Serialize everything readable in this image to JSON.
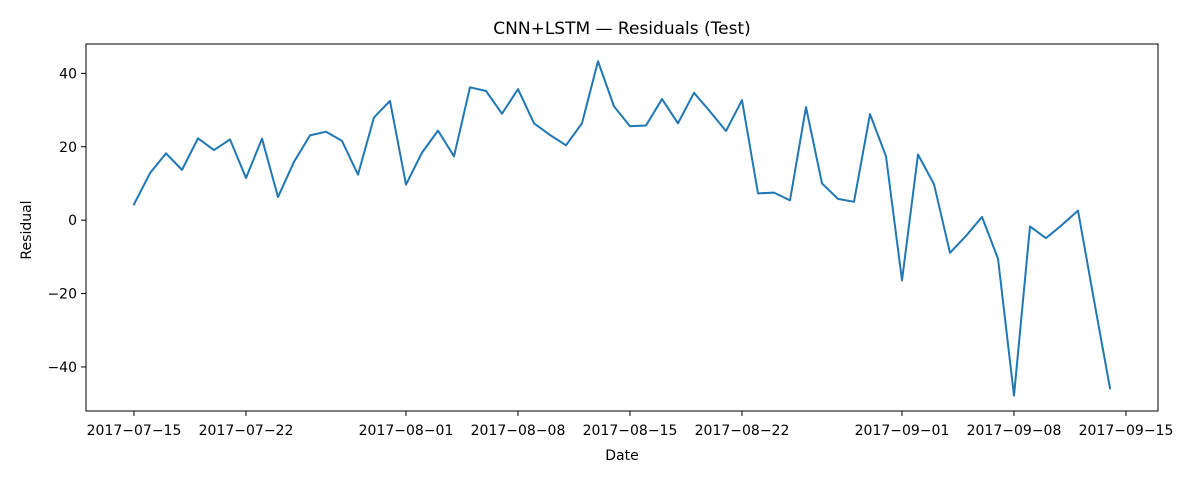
{
  "chart_data": {
    "type": "line",
    "title": "CNN+LSTM — Residuals (Test)",
    "xlabel": "Date",
    "ylabel": "Residual",
    "x_ticks": [
      "2017-07-15",
      "2017-07-22",
      "2017-08-01",
      "2017-08-08",
      "2017-08-15",
      "2017-08-22",
      "2017-09-01",
      "2017-09-08",
      "2017-09-15"
    ],
    "y_ticks": [
      -40,
      -20,
      0,
      20,
      40
    ],
    "xlim": [
      "2017-07-12",
      "2017-09-17"
    ],
    "ylim": [
      -52,
      48
    ],
    "grid": false,
    "series": [
      {
        "color": "#1f77b4",
        "x": [
          "2017-07-15",
          "2017-07-16",
          "2017-07-17",
          "2017-07-18",
          "2017-07-19",
          "2017-07-20",
          "2017-07-21",
          "2017-07-22",
          "2017-07-23",
          "2017-07-24",
          "2017-07-25",
          "2017-07-26",
          "2017-07-27",
          "2017-07-28",
          "2017-07-29",
          "2017-07-30",
          "2017-07-31",
          "2017-08-01",
          "2017-08-02",
          "2017-08-03",
          "2017-08-04",
          "2017-08-05",
          "2017-08-06",
          "2017-08-07",
          "2017-08-08",
          "2017-08-09",
          "2017-08-10",
          "2017-08-11",
          "2017-08-12",
          "2017-08-13",
          "2017-08-14",
          "2017-08-15",
          "2017-08-16",
          "2017-08-17",
          "2017-08-18",
          "2017-08-19",
          "2017-08-20",
          "2017-08-21",
          "2017-08-22",
          "2017-08-23",
          "2017-08-24",
          "2017-08-25",
          "2017-08-26",
          "2017-08-27",
          "2017-08-28",
          "2017-08-29",
          "2017-08-30",
          "2017-08-31",
          "2017-09-01",
          "2017-09-02",
          "2017-09-03",
          "2017-09-04",
          "2017-09-05",
          "2017-09-06",
          "2017-09-07",
          "2017-09-08",
          "2017-09-09",
          "2017-09-10",
          "2017-09-11",
          "2017-09-12",
          "2017-09-13",
          "2017-09-14"
        ],
        "values": [
          4.3,
          12.8,
          18.2,
          13.7,
          22.3,
          19.1,
          22.0,
          11.5,
          22.2,
          6.3,
          15.9,
          23.1,
          24.1,
          21.6,
          12.4,
          28.0,
          32.5,
          9.7,
          18.4,
          24.4,
          17.4,
          36.2,
          35.2,
          29.0,
          35.7,
          26.4,
          23.2,
          20.4,
          26.4,
          43.3,
          31.0,
          25.6,
          25.8,
          33.0,
          26.4,
          34.7,
          29.6,
          24.3,
          32.7,
          7.3,
          7.5,
          5.4,
          30.8,
          10.0,
          5.8,
          5.0,
          28.9,
          17.4,
          -16.4,
          17.9,
          9.8,
          -8.9,
          -4.3,
          0.9,
          -10.5,
          -47.8,
          -1.7,
          -4.9,
          -1.3,
          2.6,
          -21.8,
          -45.8
        ]
      }
    ]
  }
}
